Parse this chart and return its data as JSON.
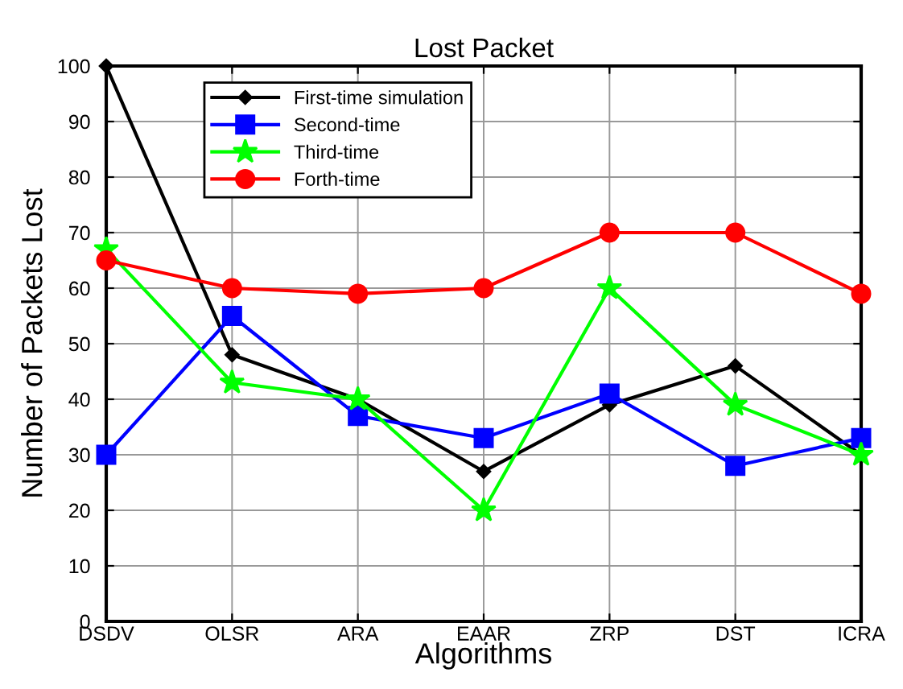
{
  "chart_data": {
    "type": "line",
    "title": "Lost Packet",
    "xlabel": "Algorithms",
    "ylabel": "Number of Packets Lost",
    "categories": [
      "DSDV",
      "OLSR",
      "ARA",
      "EAAR",
      "ZRP",
      "DST",
      "ICRA"
    ],
    "series": [
      {
        "name": "First-time simulation",
        "color": "#000000",
        "marker": "diamond",
        "values": [
          100,
          48,
          40,
          27,
          39,
          46,
          30
        ]
      },
      {
        "name": "Second-time",
        "color": "#0000ff",
        "marker": "square",
        "values": [
          30,
          55,
          37,
          33,
          41,
          28,
          33
        ]
      },
      {
        "name": "Third-time",
        "color": "#00ff00",
        "marker": "star",
        "values": [
          67,
          43,
          40,
          20,
          60,
          39,
          30
        ]
      },
      {
        "name": "Forth-time",
        "color": "#ff0000",
        "marker": "circle",
        "values": [
          65,
          60,
          59,
          60,
          70,
          70,
          59
        ]
      }
    ],
    "ylim": [
      0,
      100
    ],
    "yticks": [
      0,
      10,
      20,
      30,
      40,
      50,
      60,
      70,
      80,
      90,
      100
    ],
    "grid": true,
    "legend": "top left",
    "line_style": "solid"
  }
}
